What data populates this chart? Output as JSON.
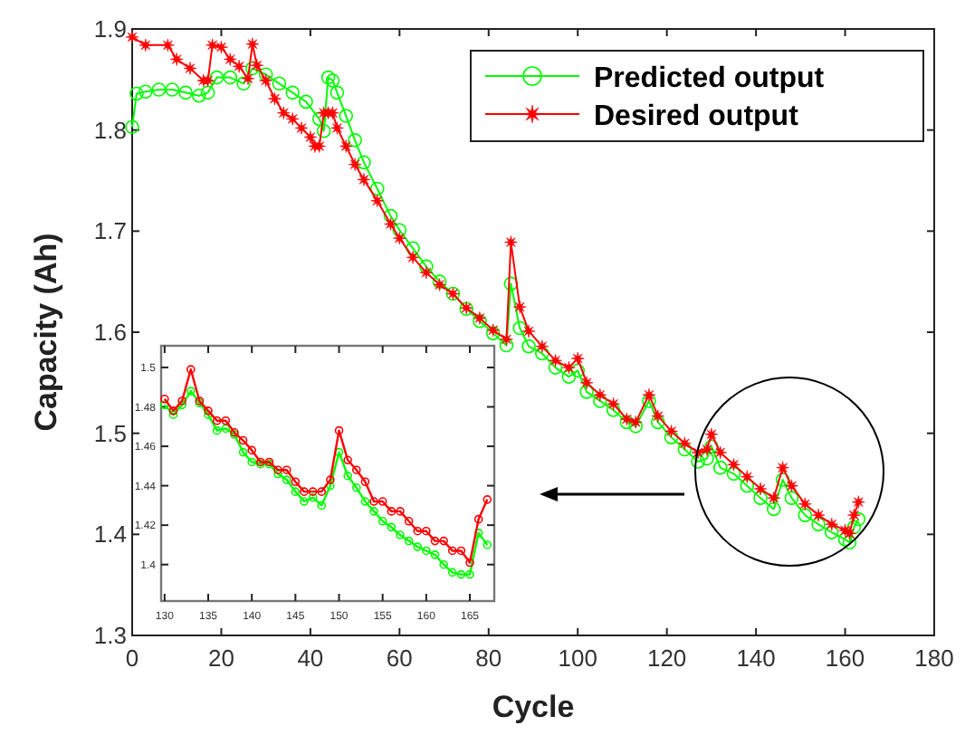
{
  "chart_data": [
    {
      "type": "line",
      "xlabel": "Cycle",
      "ylabel": "Capacity (Ah)",
      "xlim": [
        0,
        180
      ],
      "ylim": [
        1.3,
        1.9
      ],
      "xticks": [
        0,
        20,
        40,
        60,
        80,
        100,
        120,
        140,
        160,
        180
      ],
      "yticks": [
        1.3,
        1.4,
        1.5,
        1.6,
        1.7,
        1.8,
        1.9
      ],
      "grid": false,
      "legend": "top right",
      "series": [
        {
          "name": "Predicted output",
          "color": "#00ff00",
          "marker": "circle",
          "x": [
            0,
            1,
            3,
            6,
            9,
            12,
            15,
            17,
            19,
            22,
            25,
            27,
            30,
            33,
            36,
            39,
            42,
            43,
            44,
            45,
            46,
            48,
            50,
            52,
            55,
            58,
            60,
            63,
            66,
            69,
            72,
            75,
            78,
            81,
            84,
            85,
            87,
            89,
            92,
            95,
            98,
            100,
            102,
            105,
            108,
            111,
            113,
            116,
            118,
            121,
            124,
            127,
            129,
            130,
            132,
            135,
            138,
            141,
            144,
            146,
            148,
            151,
            154,
            157,
            160,
            161,
            162,
            163
          ],
          "values": [
            1.803,
            1.836,
            1.838,
            1.84,
            1.84,
            1.837,
            1.834,
            1.837,
            1.852,
            1.852,
            1.846,
            1.861,
            1.855,
            1.846,
            1.837,
            1.828,
            1.811,
            1.799,
            1.852,
            1.849,
            1.837,
            1.814,
            1.79,
            1.768,
            1.742,
            1.715,
            1.701,
            1.683,
            1.665,
            1.65,
            1.638,
            1.623,
            1.611,
            1.599,
            1.587,
            1.648,
            1.604,
            1.586,
            1.579,
            1.565,
            1.556,
            1.562,
            1.541,
            1.532,
            1.523,
            1.511,
            1.507,
            1.532,
            1.511,
            1.496,
            1.484,
            1.472,
            1.475,
            1.487,
            1.466,
            1.46,
            1.448,
            1.436,
            1.425,
            1.454,
            1.436,
            1.419,
            1.41,
            1.402,
            1.395,
            1.392,
            1.407,
            1.415
          ]
        },
        {
          "name": "Desired output",
          "color": "#ff0000",
          "marker": "star",
          "x": [
            0,
            3,
            8,
            10,
            13,
            16,
            17,
            18,
            20,
            22,
            24,
            26,
            27,
            28,
            30,
            32,
            34,
            36,
            38,
            40,
            41,
            42,
            43,
            44,
            45,
            46,
            48,
            50,
            52,
            55,
            58,
            60,
            63,
            66,
            69,
            72,
            75,
            78,
            81,
            84,
            85,
            87,
            89,
            92,
            95,
            98,
            100,
            102,
            105,
            108,
            111,
            113,
            116,
            118,
            121,
            124,
            127,
            129,
            130,
            132,
            135,
            138,
            141,
            144,
            146,
            148,
            151,
            154,
            157,
            160,
            161,
            162,
            163
          ],
          "values": [
            1.892,
            1.884,
            1.884,
            1.87,
            1.861,
            1.849,
            1.849,
            1.884,
            1.882,
            1.87,
            1.863,
            1.851,
            1.885,
            1.864,
            1.849,
            1.831,
            1.817,
            1.811,
            1.802,
            1.793,
            1.784,
            1.784,
            1.817,
            1.817,
            1.817,
            1.802,
            1.784,
            1.766,
            1.751,
            1.73,
            1.707,
            1.693,
            1.674,
            1.659,
            1.647,
            1.638,
            1.624,
            1.614,
            1.602,
            1.593,
            1.689,
            1.625,
            1.601,
            1.586,
            1.572,
            1.565,
            1.574,
            1.55,
            1.538,
            1.529,
            1.514,
            1.511,
            1.538,
            1.517,
            1.502,
            1.49,
            1.481,
            1.484,
            1.499,
            1.481,
            1.469,
            1.457,
            1.445,
            1.436,
            1.466,
            1.448,
            1.43,
            1.419,
            1.41,
            1.404,
            1.401,
            1.419,
            1.432
          ]
        }
      ]
    },
    {
      "type": "line",
      "xlim": [
        129.6,
        167.8
      ],
      "ylim": [
        1.3815,
        1.511
      ],
      "xticks": [
        130,
        135,
        140,
        145,
        150,
        155,
        160,
        165
      ],
      "yticks": [
        1.4,
        1.42,
        1.44,
        1.46,
        1.48,
        1.5
      ],
      "grid": false,
      "legend": false,
      "series": [
        {
          "color": "#00ff00",
          "marker": "circle",
          "x": [
            130,
            131,
            132,
            133,
            134,
            135,
            136,
            137,
            138,
            139,
            140,
            141,
            142,
            143,
            144,
            145,
            146,
            147,
            148,
            149,
            150,
            151,
            152,
            153,
            154,
            155,
            156,
            157,
            158,
            159,
            160,
            161,
            162,
            163,
            164,
            165,
            166,
            167
          ],
          "values": [
            1.481,
            1.476,
            1.481,
            1.488,
            1.482,
            1.476,
            1.468,
            1.469,
            1.466,
            1.457,
            1.452,
            1.451,
            1.451,
            1.446,
            1.443,
            1.437,
            1.432,
            1.434,
            1.43,
            1.44,
            1.457,
            1.445,
            1.439,
            1.432,
            1.427,
            1.422,
            1.419,
            1.415,
            1.412,
            1.409,
            1.407,
            1.405,
            1.4,
            1.396,
            1.395,
            1.395,
            1.416,
            1.41
          ]
        },
        {
          "color": "#ff0000",
          "marker": "circle",
          "x": [
            130,
            131,
            132,
            133,
            134,
            135,
            136,
            137,
            138,
            139,
            140,
            141,
            142,
            143,
            144,
            145,
            146,
            147,
            148,
            149,
            150,
            151,
            152,
            153,
            154,
            155,
            156,
            157,
            158,
            159,
            160,
            161,
            162,
            163,
            164,
            165,
            166,
            167
          ],
          "values": [
            1.484,
            1.478,
            1.483,
            1.499,
            1.483,
            1.478,
            1.473,
            1.473,
            1.467,
            1.463,
            1.458,
            1.452,
            1.452,
            1.448,
            1.448,
            1.442,
            1.437,
            1.437,
            1.437,
            1.443,
            1.468,
            1.453,
            1.448,
            1.442,
            1.432,
            1.432,
            1.427,
            1.427,
            1.422,
            1.417,
            1.417,
            1.412,
            1.412,
            1.407,
            1.407,
            1.401,
            1.423,
            1.433
          ]
        }
      ]
    }
  ]
}
